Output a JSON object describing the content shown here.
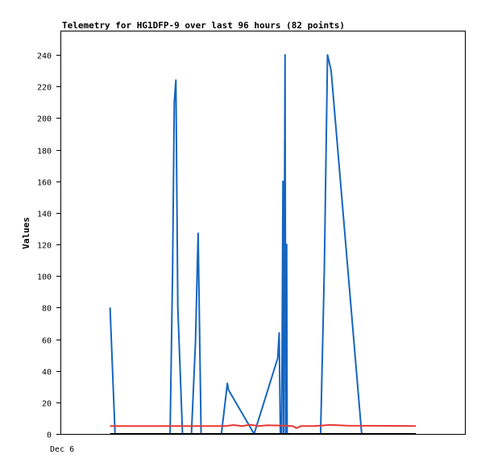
{
  "chart_data": {
    "type": "line",
    "title": "Telemetry for HG1DFP-9 over last 96 hours (82 points)",
    "xlabel": "",
    "ylabel": "Values",
    "x_tick_labels": [
      "Dec 6"
    ],
    "y_ticks": [
      0,
      20,
      40,
      60,
      80,
      100,
      120,
      140,
      160,
      180,
      200,
      220,
      240
    ],
    "ylim": [
      0,
      255
    ],
    "xlim_hours": [
      0,
      96
    ],
    "grid": false,
    "series": [
      {
        "color": "#1565c0",
        "x": [
          11.62,
          12.8,
          12.8,
          25.89,
          26.49,
          26.89,
          27.26,
          27.73,
          28.84,
          30.96,
          31.93,
          32.56,
          33.27,
          38.1,
          39.52,
          39.76,
          45.87,
          51.49,
          51.84,
          52.12,
          52.43,
          52.74,
          52.91,
          53.23,
          53.38,
          53.61,
          53.73,
          61.69,
          62.57,
          63.33,
          64.19,
          71.46
        ],
        "values": [
          80,
          0,
          0,
          0,
          103,
          210,
          224,
          80,
          0,
          0,
          58,
          127,
          0,
          0,
          32,
          28,
          0,
          48,
          64,
          0,
          0,
          160,
          0,
          240,
          0,
          120,
          0,
          0,
          103,
          240,
          230,
          0
        ]
      },
      {
        "color": "#e53935",
        "x": [
          11.62,
          39.0,
          41.0,
          43.0,
          45.0,
          47.0,
          49.0,
          52.0,
          55.0,
          56.0,
          57.0,
          60.0,
          62.0,
          64.0,
          66.0,
          68.0,
          84.35
        ],
        "values": [
          5,
          5,
          5.6,
          5,
          5.8,
          5,
          5.5,
          5.3,
          5,
          3.7,
          5,
          5,
          5.3,
          5.7,
          5.5,
          5.2,
          5
        ]
      },
      {
        "color": "#000000",
        "x": [
          11.62,
          84.35
        ],
        "values": [
          0,
          0
        ]
      }
    ]
  }
}
